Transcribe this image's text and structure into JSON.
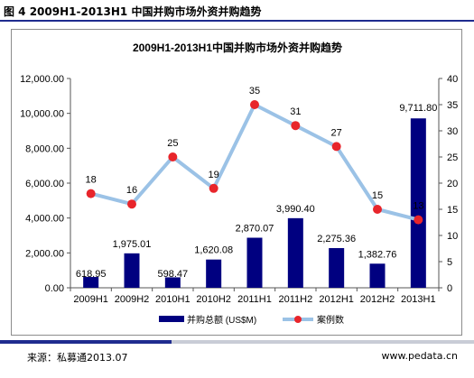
{
  "figure_title": "图 4 2009H1-2013H1 中国并购市场外资并购趋势",
  "footer": {
    "source": "来源：私募通2013.07",
    "website": "www.pedata.cn"
  },
  "colors": {
    "bar": "#000080",
    "line": "#9bc2e6",
    "marker": "#e8252b",
    "accent": "#1f2c8f"
  },
  "chart_data": {
    "type": "bar",
    "title": "2009H1-2013H1中国并购市场外资并购趋势",
    "categories": [
      "2009H1",
      "2009H2",
      "2010H1",
      "2010H2",
      "2011H1",
      "2011H2",
      "2012H1",
      "2012H2",
      "2013H1"
    ],
    "series": [
      {
        "name": "并购总额 (US$M)",
        "type": "bar",
        "axis": "left",
        "values": [
          618.95,
          1975.01,
          598.47,
          1620.08,
          2870.07,
          3990.4,
          2275.36,
          1382.76,
          9711.8
        ],
        "labels": [
          "618.95",
          "1,975.01",
          "598.47",
          "1,620.08",
          "2,870.07",
          "3,990.40",
          "2,275.36",
          "1,382.76",
          "9,711.80"
        ]
      },
      {
        "name": "案例数",
        "type": "line",
        "axis": "right",
        "values": [
          18,
          16,
          25,
          19,
          35,
          31,
          27,
          15,
          13
        ],
        "labels": [
          "18",
          "16",
          "25",
          "19",
          "35",
          "31",
          "27",
          "15",
          "13"
        ]
      }
    ],
    "y_left": {
      "min": 0,
      "max": 12000,
      "ticks": [
        "0.00",
        "2,000.00",
        "4,000.00",
        "6,000.00",
        "8,000.00",
        "10,000.00",
        "12,000.00"
      ]
    },
    "y_right": {
      "min": 0,
      "max": 40,
      "ticks": [
        "0",
        "5",
        "10",
        "15",
        "20",
        "25",
        "30",
        "35",
        "40"
      ]
    },
    "grid": false,
    "legend_position": "bottom"
  }
}
